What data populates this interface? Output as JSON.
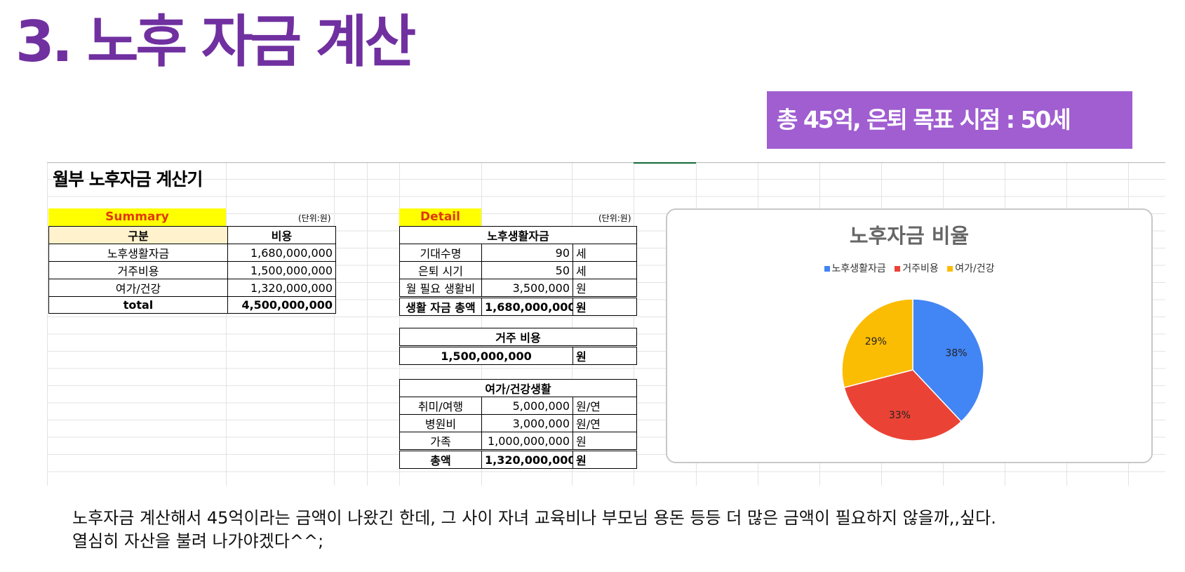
{
  "slide": {
    "title": "3. 노후 자금 계산",
    "goal_banner": "총 45억, 은퇴 목표 시점 : 50세"
  },
  "sheet": {
    "title": "월부 노후자금 계산기",
    "summary": {
      "label": "Summary",
      "unit": "(단위:원)",
      "headers": [
        "구분",
        "비용"
      ],
      "rows": [
        {
          "item": "노후생활자금",
          "cost": "1,680,000,000"
        },
        {
          "item": "거주비용",
          "cost": "1,500,000,000"
        },
        {
          "item": "여가/건강",
          "cost": "1,320,000,000"
        }
      ],
      "total": {
        "item": "total",
        "cost": "4,500,000,000"
      }
    },
    "detail": {
      "label": "Detail",
      "unit": "(단위:원)",
      "living": {
        "header": "노후생활자금",
        "rows": [
          {
            "item": "기대수명",
            "value": "90",
            "unit": "세"
          },
          {
            "item": "은퇴 시기",
            "value": "50",
            "unit": "세"
          },
          {
            "item": "월 필요 생활비",
            "value": "3,500,000",
            "unit": "원"
          }
        ],
        "total": {
          "item": "생활 자금 총액",
          "value": "1,680,000,000",
          "unit": "원"
        }
      },
      "housing": {
        "header": "거주 비용",
        "value": "1,500,000,000",
        "unit": "원"
      },
      "leisure": {
        "header": "여가/건강생활",
        "rows": [
          {
            "item": "취미/여행",
            "value": "5,000,000",
            "unit": "원/연"
          },
          {
            "item": "병원비",
            "value": "3,000,000",
            "unit": "원/연"
          },
          {
            "item": "가족",
            "value": "1,000,000,000",
            "unit": "원"
          }
        ],
        "total": {
          "item": "총액",
          "value": "1,320,000,000",
          "unit": "원"
        }
      }
    }
  },
  "chart_data": {
    "type": "pie",
    "title": "노후자금 비율",
    "categories": [
      "노후생활자금",
      "거주비용",
      "여가/건강"
    ],
    "values": [
      38,
      33,
      29
    ],
    "labels": [
      "38%",
      "33%",
      "29%"
    ],
    "colors": [
      "#4285F4",
      "#EA4335",
      "#FBBC04"
    ],
    "legend": "top"
  },
  "comment": {
    "line1": "노후자금 계산해서 45억이라는 금액이 나왔긴 한데, 그 사이 자녀 교육비나 부모님 용돈 등등 더 많은 금액이 필요하지 않을까,,싶다.",
    "line2": "열심히 자산을 불려 나가야겠다^^;"
  }
}
